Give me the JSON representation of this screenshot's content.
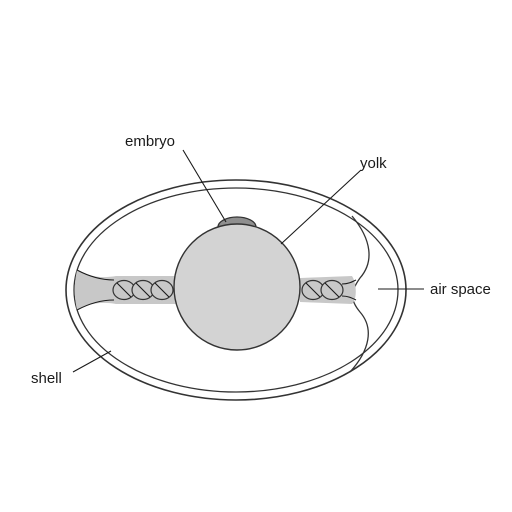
{
  "labels": {
    "embryo": "embryo",
    "yolk": "yolk",
    "air_space": "air space",
    "shell": "shell"
  },
  "colors": {
    "outline": "#333333",
    "yolk_fill": "#d3d3d3",
    "embryo_fill": "#8f8f8f",
    "chalaza_fill": "#c8c8c8",
    "egg_fill": "#ffffff"
  }
}
